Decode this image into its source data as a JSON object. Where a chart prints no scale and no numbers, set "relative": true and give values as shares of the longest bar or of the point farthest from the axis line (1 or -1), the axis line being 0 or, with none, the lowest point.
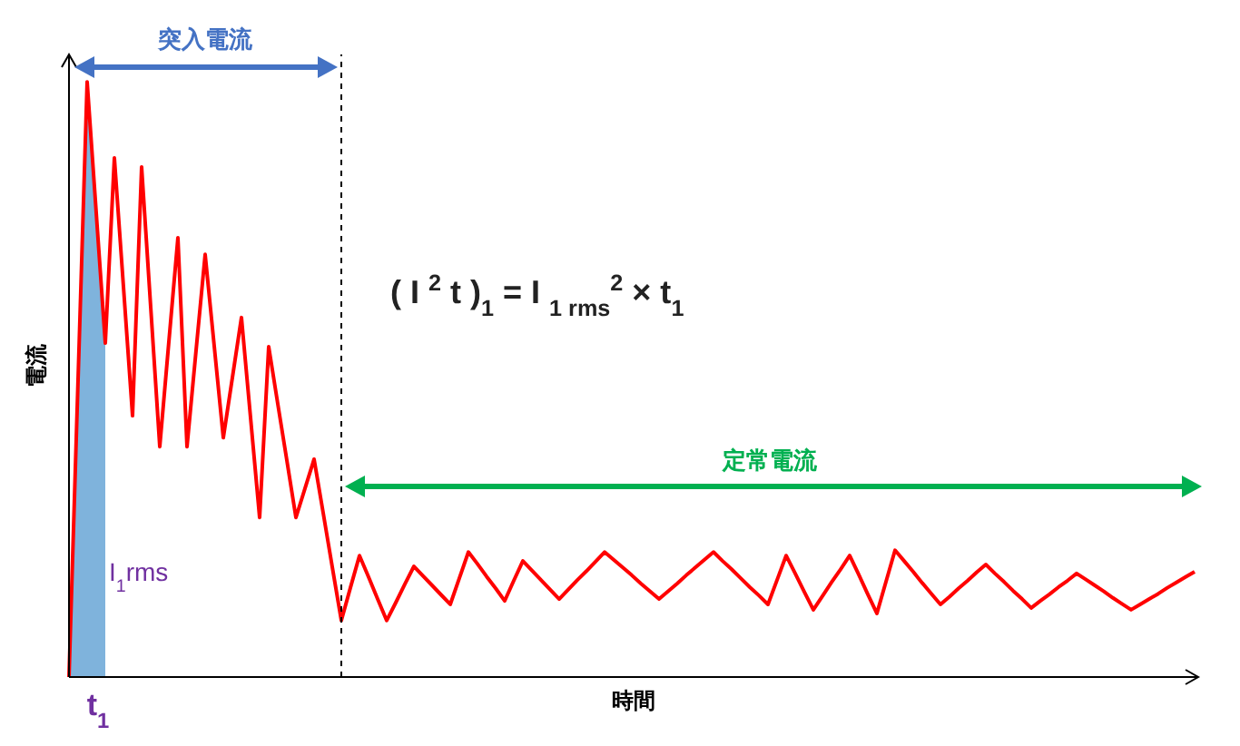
{
  "chart_data": {
    "type": "line",
    "relative": true,
    "xlabel": "時間",
    "ylabel": "電流",
    "line_style": "solid",
    "categories": [
      null,
      null,
      null,
      null,
      null,
      null,
      null,
      null,
      null,
      null,
      null,
      null,
      null,
      null,
      null,
      null,
      null,
      null,
      null,
      null,
      null,
      null,
      null,
      null,
      null,
      null,
      null,
      null,
      null,
      null,
      null,
      null,
      null,
      null,
      null,
      null,
      null,
      null,
      null,
      null,
      null,
      null,
      null,
      null,
      null,
      null,
      null,
      null,
      null,
      null,
      null,
      null,
      null,
      null,
      null,
      null,
      null,
      null,
      null,
      null,
      null,
      null,
      null,
      null,
      null,
      null,
      null,
      null,
      null,
      null,
      null,
      null,
      null,
      null,
      null,
      null,
      null,
      null,
      null,
      null,
      null,
      null,
      null,
      null,
      null,
      null,
      null,
      null,
      null,
      null,
      null,
      null,
      null,
      null,
      null,
      null,
      null,
      null,
      null,
      null,
      null,
      null,
      null,
      null,
      null,
      null,
      null,
      null,
      null,
      null,
      null,
      null,
      null,
      null,
      null,
      null,
      null,
      null,
      null,
      null,
      null,
      null,
      null,
      null,
      null
    ],
    "series": [
      {
        "type": "area",
        "color": "#7fb3dc",
        "values": [
          0,
          0.5,
          1,
          0.78,
          0.561,
          null,
          null,
          null,
          null,
          null,
          null,
          null,
          null,
          null,
          null,
          null,
          null,
          null,
          null,
          null,
          null,
          null,
          null,
          null,
          null,
          null,
          null,
          null,
          null,
          null,
          null,
          null,
          null,
          null,
          null,
          null,
          null,
          null,
          null,
          null,
          null,
          null,
          null,
          null,
          null,
          null,
          null,
          null,
          null,
          null,
          null,
          null,
          null,
          null,
          null,
          null,
          null,
          null,
          null,
          null,
          null,
          null,
          null,
          null,
          null,
          null,
          null,
          null,
          null,
          null,
          null,
          null,
          null,
          null,
          null,
          null,
          null,
          null,
          null,
          null,
          null,
          null,
          null,
          null,
          null,
          null,
          null,
          null,
          null,
          null,
          null,
          null,
          null,
          null,
          null,
          null,
          null,
          null,
          null,
          null,
          null,
          null,
          null,
          null,
          null,
          null,
          null,
          null,
          null,
          null,
          null,
          null,
          null,
          null,
          null,
          null,
          null,
          null,
          null,
          null,
          null,
          null,
          null,
          null,
          null
        ]
      },
      {
        "type": "line",
        "color": "#ff0000",
        "values": [
          0,
          0.5,
          1,
          0.78,
          0.561,
          0.872,
          0.656,
          0.439,
          0.857,
          0.622,
          0.387,
          0.563,
          0.738,
          0.387,
          0.549,
          0.71,
          0.556,
          0.402,
          0.503,
          0.604,
          0.436,
          0.268,
          0.555,
          0.459,
          0.364,
          0.268,
          0.317,
          0.366,
          0.276,
          0.185,
          0.095,
          0.15,
          0.204,
          0.168,
          0.131,
          0.095,
          0.125,
          0.156,
          0.186,
          0.17,
          0.154,
          0.138,
          0.122,
          0.166,
          0.21,
          0.19,
          0.169,
          0.149,
          0.128,
          0.162,
          0.195,
          0.179,
          0.163,
          0.147,
          0.131,
          0.147,
          0.163,
          0.178,
          0.194,
          0.21,
          0.197,
          0.184,
          0.171,
          0.157,
          0.144,
          0.131,
          0.144,
          0.157,
          0.171,
          0.184,
          0.197,
          0.21,
          0.195,
          0.181,
          0.166,
          0.151,
          0.137,
          0.122,
          0.163,
          0.204,
          0.174,
          0.143,
          0.113,
          0.136,
          0.159,
          0.181,
          0.204,
          0.172,
          0.139,
          0.107,
          0.16,
          0.213,
          0.195,
          0.177,
          0.158,
          0.14,
          0.122,
          0.135,
          0.149,
          0.162,
          0.176,
          0.189,
          0.174,
          0.16,
          0.145,
          0.131,
          0.116,
          0.128,
          0.139,
          0.151,
          0.162,
          0.174,
          0.164,
          0.154,
          0.144,
          0.133,
          0.123,
          0.113,
          0.122,
          0.131,
          0.14,
          0.15,
          0.159,
          0.168,
          0.177
        ]
      }
    ],
    "annotations": [
      "突入電流",
      "定常電流",
      "( I $^{2}$ t )$_{1}$ = I $_{1 rms}$$^{2}$ × t$_{1}$",
      "I$_{1}$rms",
      "t$_{1}$"
    ]
  }
}
